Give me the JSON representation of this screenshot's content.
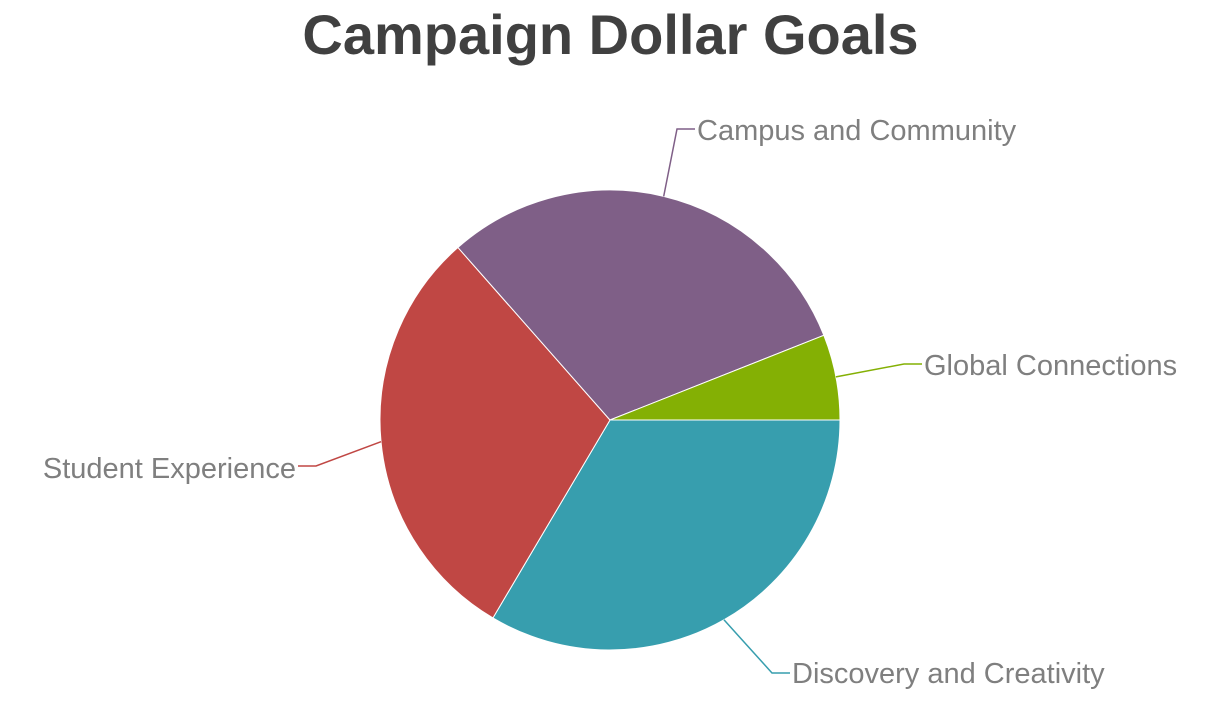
{
  "chart_data": {
    "type": "pie",
    "title": "Campaign Dollar Goals",
    "legend": "none",
    "slices": [
      {
        "label": "Discovery and Creativity",
        "value": 33.5,
        "color": "#379EAE"
      },
      {
        "label": "Student Experience",
        "value": 30.0,
        "color": "#C04744"
      },
      {
        "label": "Campus and Community",
        "value": 30.5,
        "color": "#7F5F87"
      },
      {
        "label": "Global Connections",
        "value": 6.0,
        "color": "#84B004"
      }
    ],
    "start": "3 o'clock",
    "direction": "clockwise"
  }
}
